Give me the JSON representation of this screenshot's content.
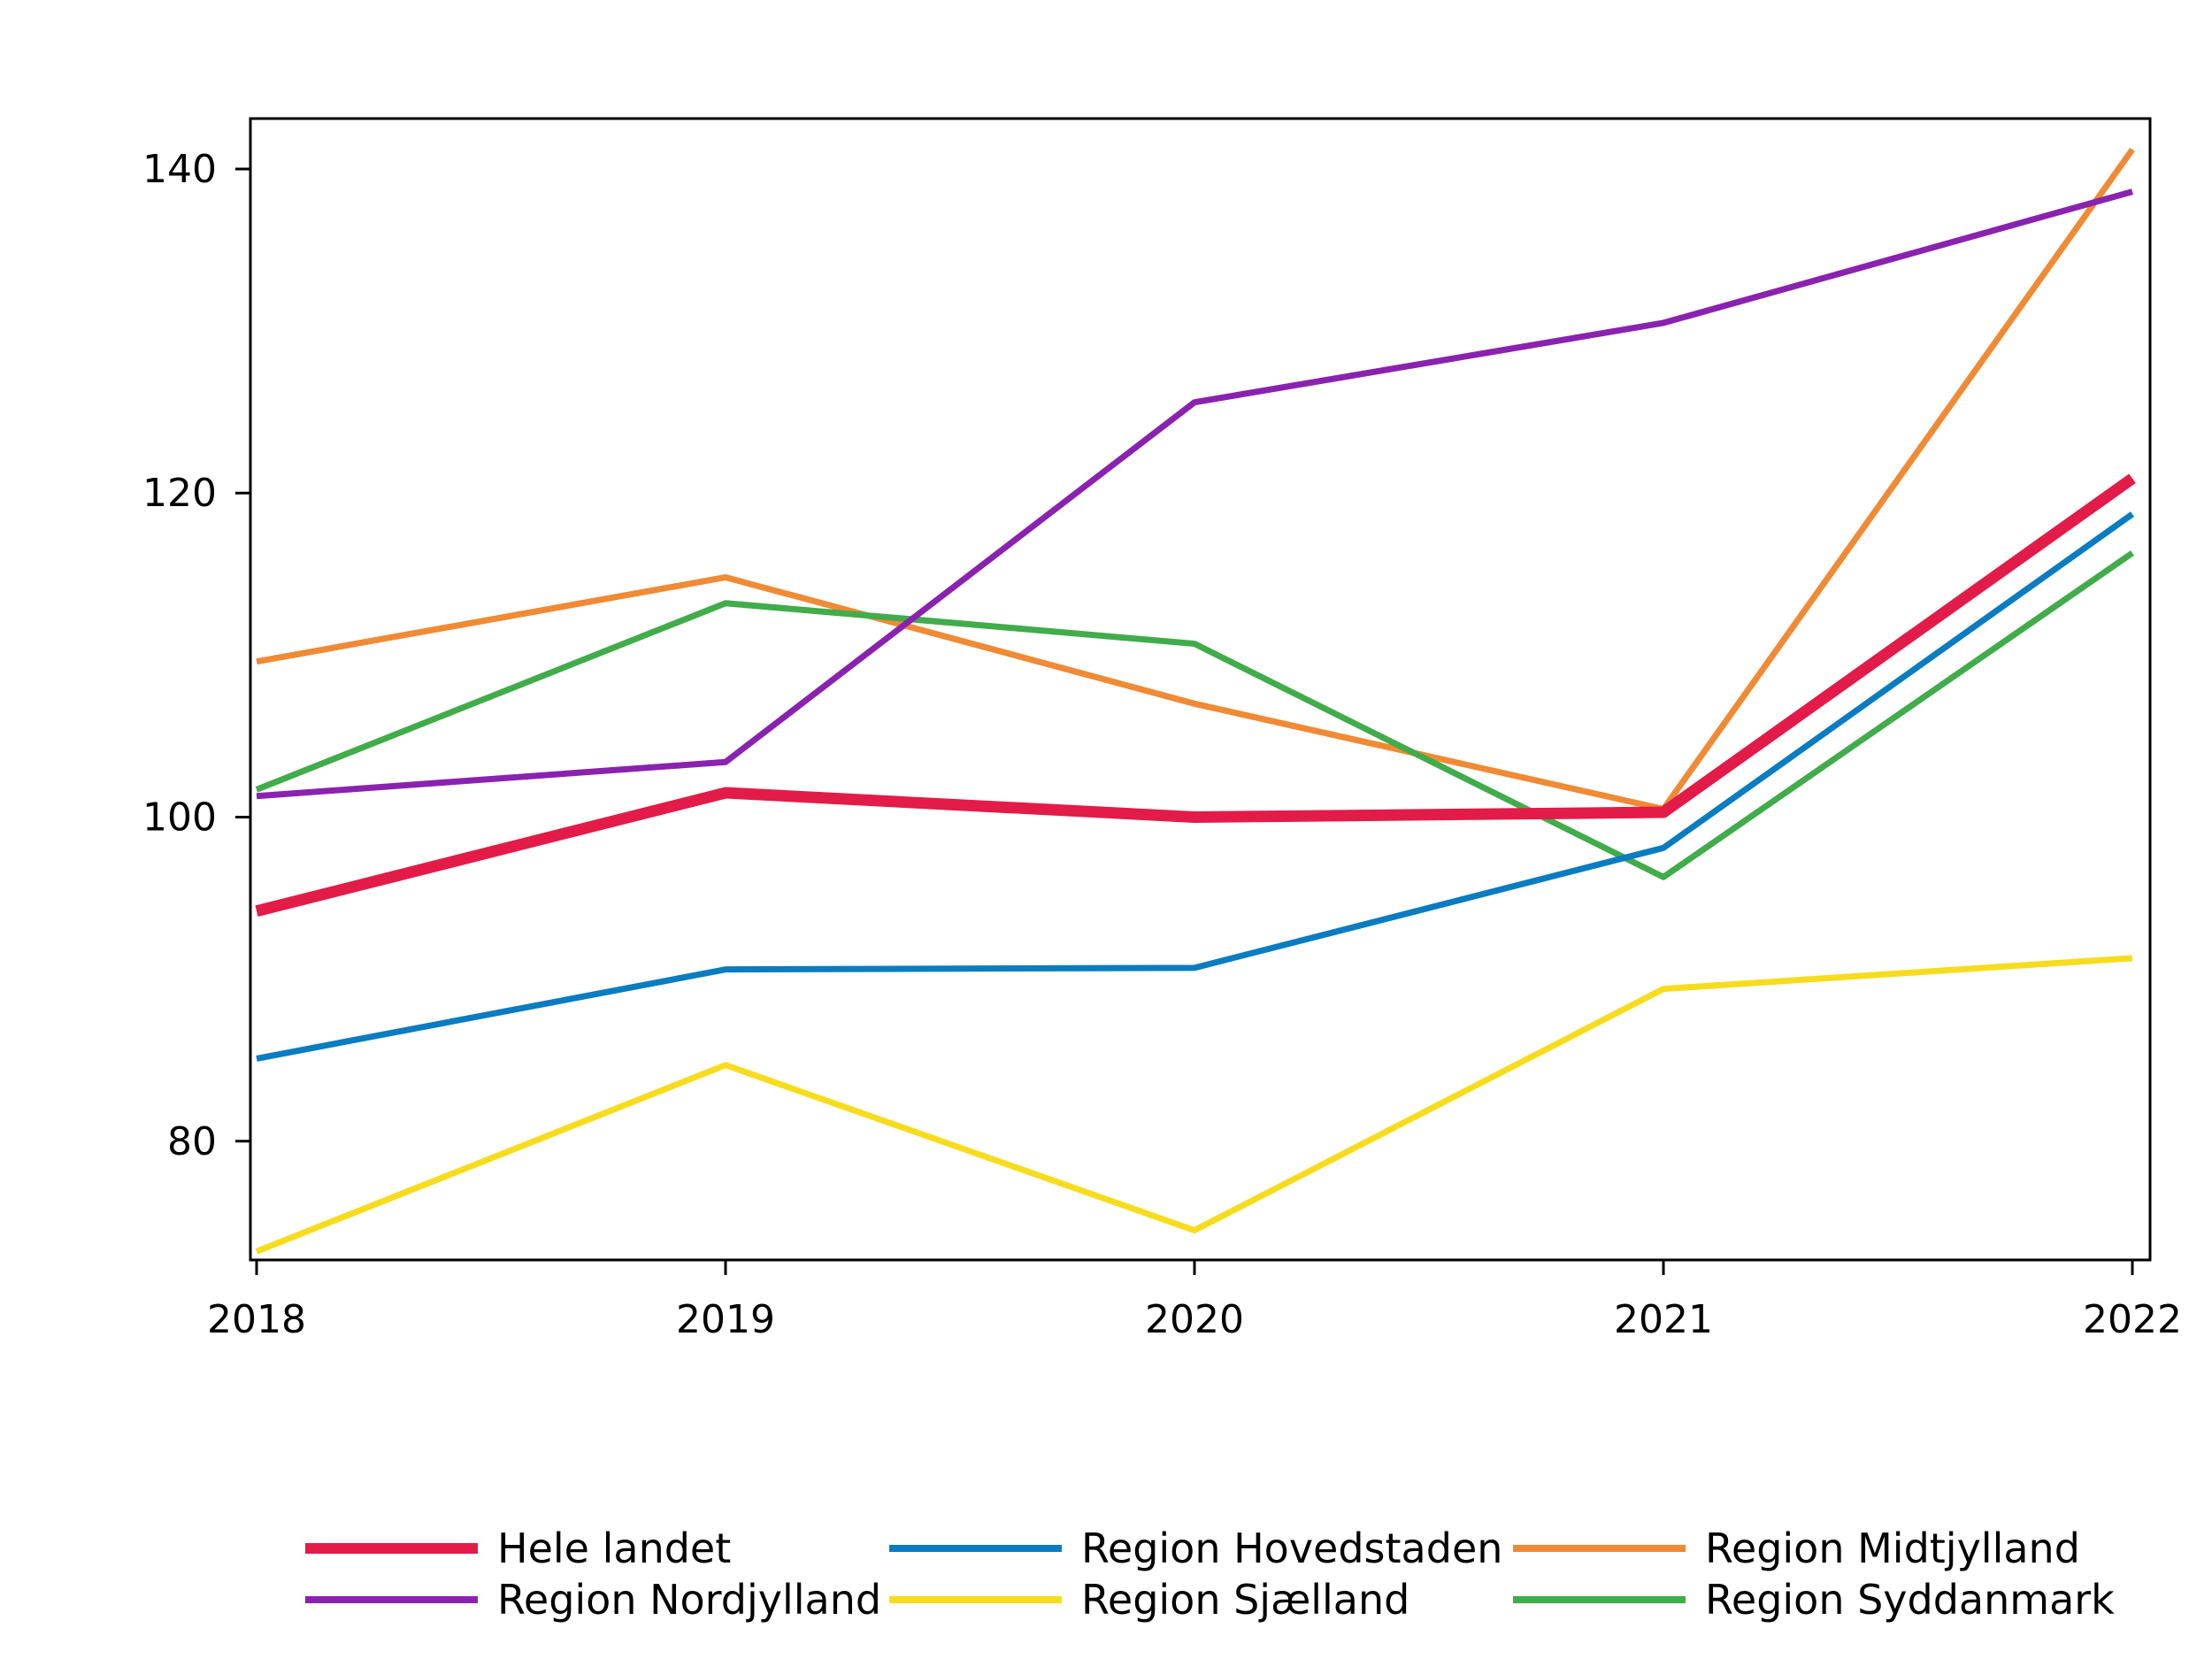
{
  "chart_data": {
    "type": "line",
    "title": "",
    "xlabel": "",
    "ylabel": "",
    "x": [
      2018,
      2019,
      2020,
      2021,
      2022
    ],
    "xlim": [
      2018,
      2022
    ],
    "ylim": [
      73,
      143
    ],
    "yticks": [
      80,
      100,
      120,
      140
    ],
    "grid": false,
    "legend_position": "bottom",
    "series": [
      {
        "name": "Hele landet",
        "color": "#e31b48",
        "values": [
          94.2,
          101.5,
          100.0,
          100.3,
          120.9
        ]
      },
      {
        "name": "Region Hovedstaden",
        "color": "#0a7cc1",
        "values": [
          85.1,
          90.6,
          90.7,
          98.1,
          118.7
        ]
      },
      {
        "name": "Region Midtjylland",
        "color": "#f08a34",
        "values": [
          109.6,
          114.8,
          107.0,
          100.5,
          141.2
        ]
      },
      {
        "name": "Region Nordjylland",
        "color": "#8a22b0",
        "values": [
          101.3,
          103.4,
          125.6,
          130.5,
          138.6
        ]
      },
      {
        "name": "Region Sjælland",
        "color": "#f7dc1e",
        "values": [
          73.2,
          84.7,
          74.5,
          89.4,
          91.3
        ]
      },
      {
        "name": "Region Syddanmark",
        "color": "#40ac4a",
        "values": [
          101.7,
          113.2,
          110.7,
          96.3,
          116.3
        ]
      }
    ]
  }
}
